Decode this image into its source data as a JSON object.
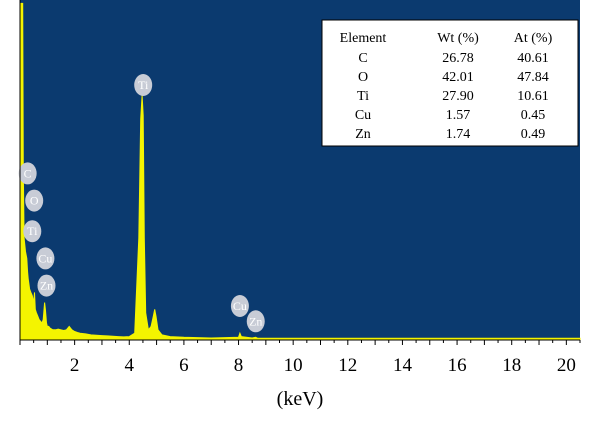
{
  "chart_data": {
    "type": "line",
    "title": "",
    "xlabel": "(keV)",
    "ylabel": "",
    "xlim": [
      0,
      20.5
    ],
    "ylim": [
      0,
      1.0
    ],
    "x_ticks": [
      2,
      4,
      6,
      8,
      10,
      12,
      14,
      16,
      18,
      20
    ],
    "grid": false,
    "background_color": "#0b3a6f",
    "line_color": "#f4f400",
    "spectrum": {
      "x": [
        0.0,
        0.1,
        0.12,
        0.15,
        0.2,
        0.25,
        0.28,
        0.3,
        0.35,
        0.4,
        0.45,
        0.5,
        0.53,
        0.56,
        0.6,
        0.65,
        0.7,
        0.8,
        0.85,
        0.9,
        0.93,
        0.97,
        1.0,
        1.05,
        1.1,
        1.2,
        1.3,
        1.4,
        1.5,
        1.6,
        1.7,
        1.8,
        1.9,
        2.0,
        2.1,
        2.2,
        2.4,
        2.6,
        2.8,
        3.0,
        3.2,
        3.4,
        3.6,
        3.8,
        4.0,
        4.2,
        4.35,
        4.42,
        4.47,
        4.51,
        4.55,
        4.6,
        4.7,
        4.8,
        4.88,
        4.93,
        4.98,
        5.05,
        5.2,
        5.5,
        6.0,
        7.0,
        8.0,
        8.05,
        8.1,
        8.5,
        8.63,
        8.7,
        9.0,
        10.0,
        12.0,
        14.0,
        16.0,
        18.0,
        20.0,
        20.5
      ],
      "y": [
        0.99,
        0.99,
        0.5,
        0.3,
        0.26,
        0.24,
        0.2,
        0.18,
        0.15,
        0.14,
        0.13,
        0.11,
        0.14,
        0.09,
        0.08,
        0.07,
        0.06,
        0.05,
        0.06,
        0.11,
        0.09,
        0.05,
        0.04,
        0.04,
        0.035,
        0.03,
        0.03,
        0.032,
        0.03,
        0.028,
        0.03,
        0.04,
        0.03,
        0.025,
        0.022,
        0.02,
        0.018,
        0.015,
        0.014,
        0.013,
        0.012,
        0.011,
        0.01,
        0.009,
        0.01,
        0.02,
        0.3,
        0.65,
        0.72,
        0.66,
        0.3,
        0.08,
        0.03,
        0.04,
        0.07,
        0.09,
        0.07,
        0.03,
        0.015,
        0.01,
        0.008,
        0.006,
        0.008,
        0.02,
        0.01,
        0.006,
        0.008,
        0.005,
        0.005,
        0.005,
        0.005,
        0.005,
        0.005,
        0.005,
        0.005,
        0.005
      ]
    },
    "peak_labels": [
      {
        "element": "C",
        "x": 0.28,
        "y": 0.49
      },
      {
        "element": "O",
        "x": 0.52,
        "y": 0.41
      },
      {
        "element": "Ti",
        "x": 0.45,
        "y": 0.32
      },
      {
        "element": "Cu",
        "x": 0.93,
        "y": 0.24
      },
      {
        "element": "Zn",
        "x": 0.97,
        "y": 0.16
      },
      {
        "element": "Ti",
        "x": 4.51,
        "y": 0.75
      },
      {
        "element": "Cu",
        "x": 8.05,
        "y": 0.1
      },
      {
        "element": "Zn",
        "x": 8.63,
        "y": 0.055
      }
    ],
    "peak_label_color": "#c8ccd6",
    "table": {
      "headers": [
        "Element",
        "Wt (%)",
        "At (%)"
      ],
      "rows": [
        [
          "C",
          "26.78",
          "40.61"
        ],
        [
          "O",
          "42.01",
          "47.84"
        ],
        [
          "Ti",
          "27.90",
          "10.61"
        ],
        [
          "Cu",
          "1.57",
          "0.45"
        ],
        [
          "Zn",
          "1.74",
          "0.49"
        ]
      ],
      "position": "top-right"
    }
  }
}
